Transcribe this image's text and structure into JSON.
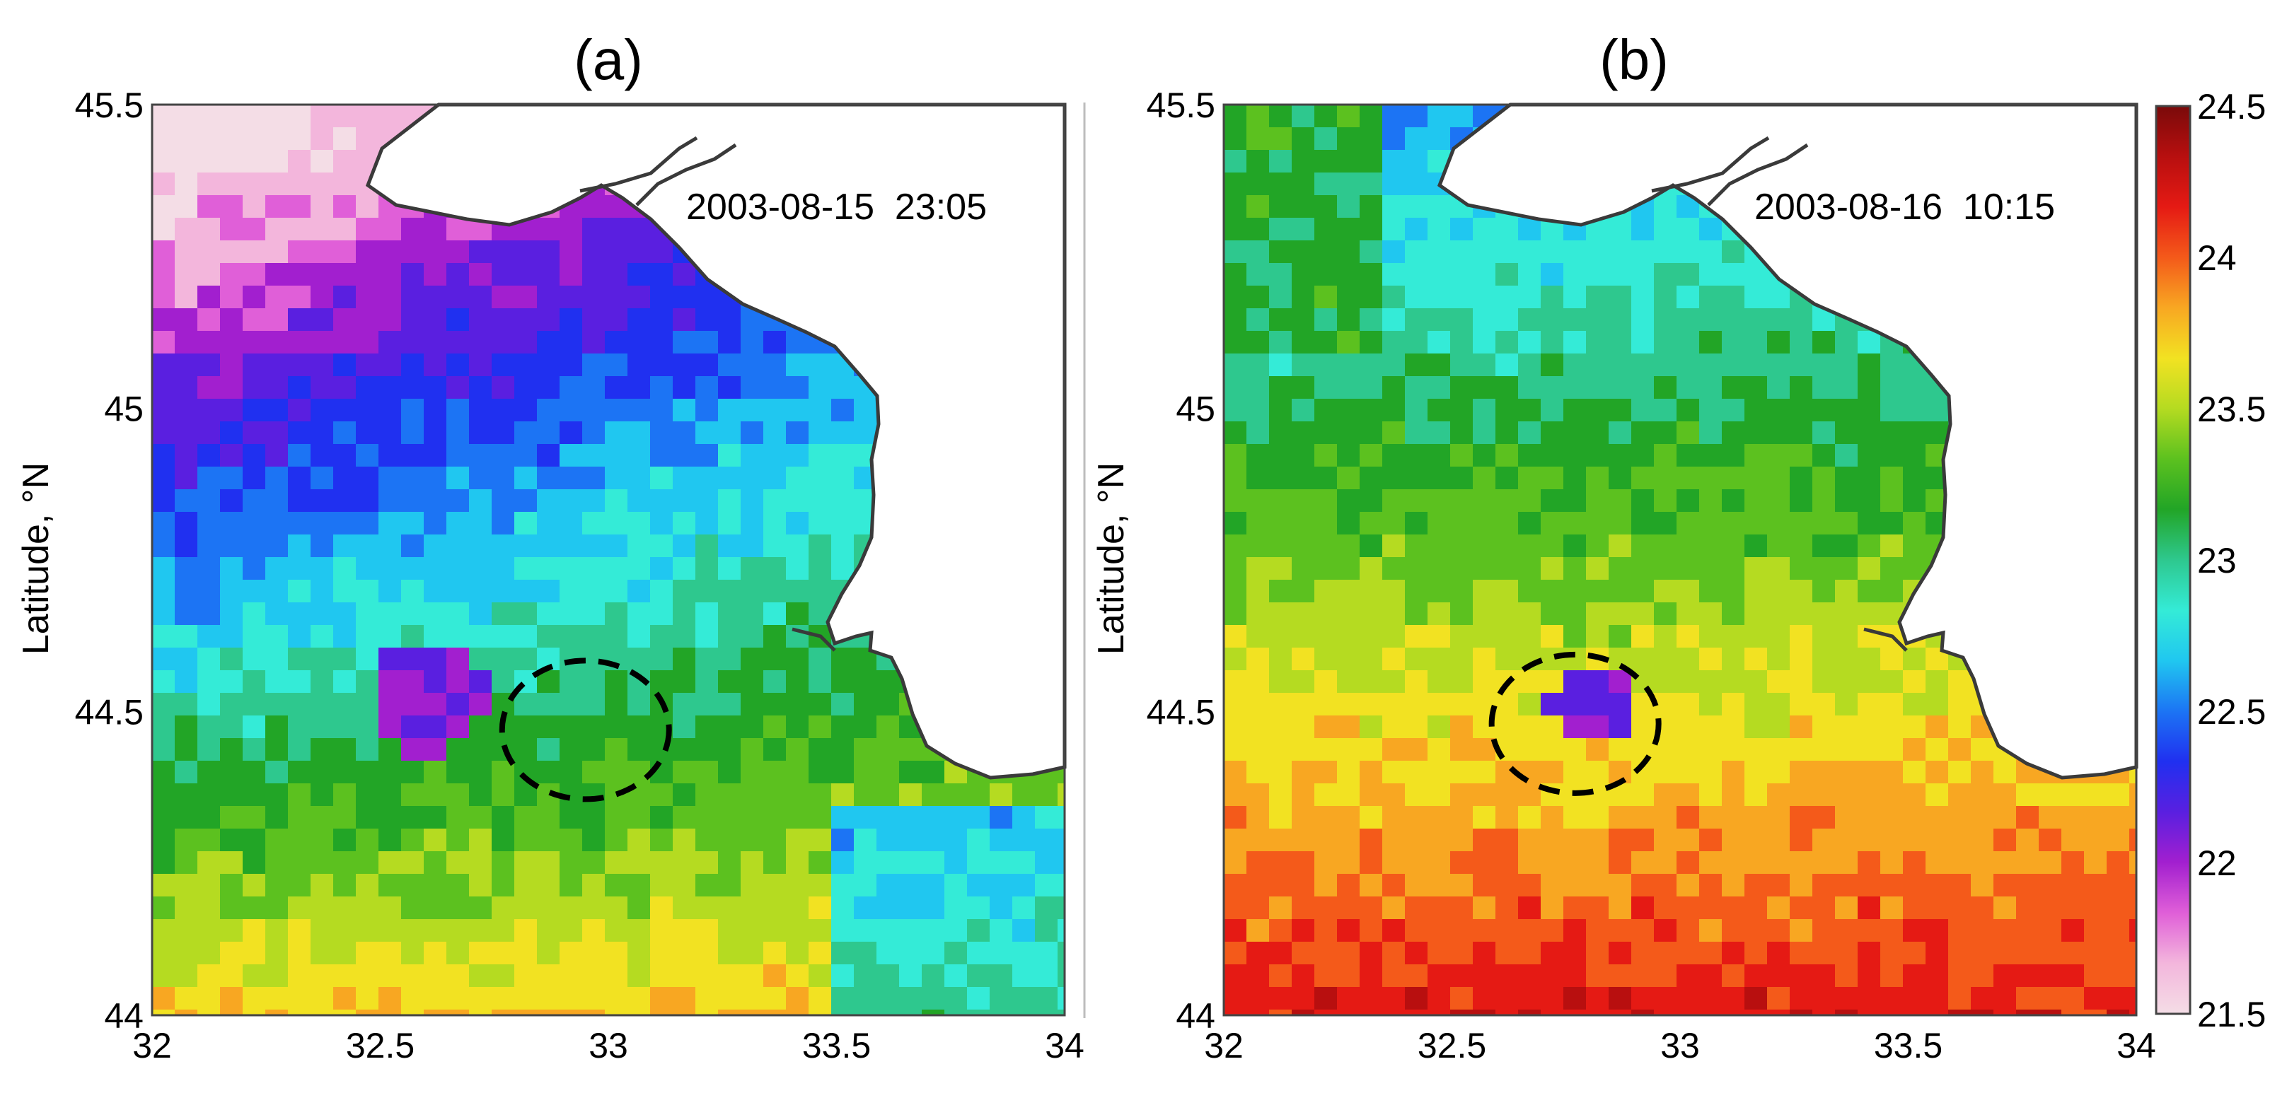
{
  "colors": {
    "colormap": [
      "#f4dde6",
      "#f3b6dc",
      "#e05fd8",
      "#a21fcf",
      "#5a1fe0",
      "#2030f0",
      "#1c74f4",
      "#20c7f0",
      "#34ebd7",
      "#2ec88e",
      "#22a526",
      "#5cc11f",
      "#b5db21",
      "#f2e222",
      "#f8a722",
      "#f45a1a",
      "#e51a14",
      "#b80f0f",
      "#7a0a0a"
    ],
    "coast": "#3a3a3a",
    "circle": "#000000",
    "land": "#ffffff"
  },
  "panels": [
    {
      "label": "(a)",
      "timestamp": "2003-08-15  23:05",
      "ylabel": "Latitude, °N",
      "x_ticks": [
        "32",
        "32.5",
        "33",
        "33.5",
        "34"
      ],
      "y_ticks": [
        "45.5",
        "45",
        "44.5",
        "44"
      ],
      "circle_center": {
        "lon": 32.95,
        "lat": 44.47
      }
    },
    {
      "label": "(b)",
      "timestamp": "2003-08-16  10:15",
      "ylabel": "Latitude, °N",
      "x_ticks": [
        "32",
        "32.5",
        "33",
        "33.5",
        "34"
      ],
      "y_ticks": [
        "45.5",
        "45",
        "44.5",
        "44"
      ],
      "circle_center": {
        "lon": 32.77,
        "lat": 44.48
      }
    }
  ],
  "colorbar": {
    "ticks": [
      "24.5",
      "24",
      "23.5",
      "23",
      "22.5",
      "22",
      "21.5"
    ],
    "min": 21.5,
    "max": 24.5
  }
}
